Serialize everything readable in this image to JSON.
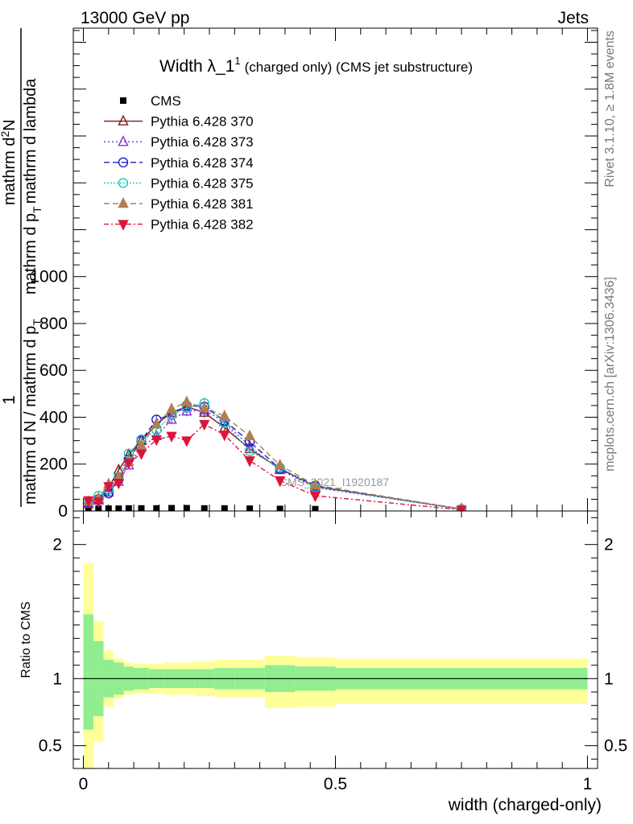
{
  "header": {
    "left": "13000 GeV pp",
    "right": "Jets"
  },
  "side_labels": {
    "rivet": "Rivet 3.1.10, ≥ 1.8M events",
    "mcplots": "mcplots.cern.ch [arXiv:1306.3436]"
  },
  "watermark": "CMS_2021_I1920187",
  "chart_data": [
    {
      "type": "line",
      "title_main": "Width λ_1",
      "title_sup": "1",
      "title_rest": "(charged only) (CMS jet substructure)",
      "ylabel": {
        "numerator": "1",
        "denominator": "mathrm d N / mathrm d p",
        "denominator_sub": "T",
        "factor": "mathrm d",
        "factor_sup": "2",
        "factor_tail": "N",
        "factor_den": "mathrm d p",
        "factor_den_sub": "T",
        "factor_den_tail": "mathrm d lambda"
      },
      "xlim": [
        -0.02,
        1.02
      ],
      "ylim": [
        0,
        2060
      ],
      "yticks": [
        0,
        200,
        400,
        600,
        800,
        1000
      ],
      "ytick_labels": [
        "0",
        "200",
        "400",
        "600",
        "800",
        "1000"
      ],
      "cms_bins": [
        0,
        0.02,
        0.04,
        0.06,
        0.08,
        0.1,
        0.13,
        0.16,
        0.19,
        0.22,
        0.26,
        0.3,
        0.36,
        0.42,
        0.5,
        1.0
      ],
      "series": [
        {
          "name": "CMS",
          "color": "#000000",
          "dash": "",
          "marker": "square",
          "x": [
            0.01,
            0.03,
            0.05,
            0.07,
            0.09,
            0.115,
            0.145,
            0.175,
            0.205,
            0.24,
            0.28,
            0.33,
            0.39,
            0.46,
            0.75
          ],
          "y": [
            2,
            3,
            3,
            3,
            4,
            4,
            4,
            5,
            5,
            4,
            4,
            3,
            2,
            1,
            0
          ]
        },
        {
          "name": "Pythia 6.428 370",
          "color": "#7b1a1a",
          "dash": "",
          "marker": "triangle-up-open",
          "x": [
            0.01,
            0.03,
            0.05,
            0.07,
            0.09,
            0.115,
            0.145,
            0.175,
            0.205,
            0.24,
            0.28,
            0.33,
            0.39,
            0.46,
            0.75
          ],
          "y": [
            30,
            50,
            100,
            175,
            240,
            300,
            370,
            420,
            445,
            420,
            355,
            265,
            180,
            105,
            8
          ]
        },
        {
          "name": "Pythia 6.428 373",
          "color": "#8a2be2",
          "dash": "2,3",
          "marker": "triangle-up-open",
          "x": [
            0.01,
            0.03,
            0.05,
            0.07,
            0.09,
            0.115,
            0.145,
            0.175,
            0.205,
            0.24,
            0.28,
            0.33,
            0.39,
            0.46,
            0.75
          ],
          "y": [
            32,
            45,
            80,
            125,
            195,
            270,
            320,
            390,
            425,
            430,
            380,
            275,
            175,
            100,
            8
          ]
        },
        {
          "name": "Pythia 6.428 374",
          "color": "#1a1acc",
          "dash": "7,4",
          "marker": "circle-open",
          "x": [
            0.01,
            0.03,
            0.05,
            0.07,
            0.09,
            0.115,
            0.145,
            0.175,
            0.205,
            0.24,
            0.28,
            0.33,
            0.39,
            0.46,
            0.75
          ],
          "y": [
            40,
            50,
            75,
            135,
            220,
            300,
            390,
            410,
            450,
            445,
            385,
            295,
            180,
            108,
            8
          ]
        },
        {
          "name": "Pythia 6.428 375",
          "color": "#20c8b4",
          "dash": "2,2",
          "marker": "circle-open",
          "x": [
            0.01,
            0.03,
            0.05,
            0.07,
            0.09,
            0.115,
            0.145,
            0.175,
            0.205,
            0.24,
            0.28,
            0.33,
            0.39,
            0.46,
            0.75
          ],
          "y": [
            42,
            65,
            90,
            145,
            245,
            305,
            345,
            410,
            440,
            460,
            375,
            255,
            185,
            102,
            8
          ]
        },
        {
          "name": "Pythia 6.428 381",
          "color": "#b08050",
          "dash": "7,4",
          "marker": "triangle-up-filled",
          "x": [
            0.01,
            0.03,
            0.05,
            0.07,
            0.09,
            0.115,
            0.145,
            0.175,
            0.205,
            0.24,
            0.28,
            0.33,
            0.39,
            0.46,
            0.75
          ],
          "y": [
            40,
            55,
            115,
            145,
            210,
            280,
            370,
            435,
            465,
            440,
            405,
            320,
            195,
            110,
            9
          ]
        },
        {
          "name": "Pythia 6.428 382",
          "color": "#dc143c",
          "dash": "6,3,2,3",
          "marker": "triangle-down-filled",
          "x": [
            0.01,
            0.03,
            0.05,
            0.07,
            0.09,
            0.115,
            0.145,
            0.175,
            0.205,
            0.24,
            0.28,
            0.33,
            0.39,
            0.46,
            0.75
          ],
          "y": [
            45,
            40,
            105,
            120,
            205,
            245,
            305,
            320,
            300,
            370,
            325,
            215,
            130,
            65,
            5
          ]
        }
      ]
    },
    {
      "type": "area",
      "ylabel": "Ratio to CMS",
      "xlabel": "width (charged-only)",
      "xlim": [
        -0.02,
        1.02
      ],
      "ylim": [
        0.33,
        2.25
      ],
      "yticks": [
        0.5,
        1,
        2
      ],
      "ytick_labels": [
        "0.5",
        "1",
        "2"
      ],
      "xticks": [
        0,
        0.5,
        1
      ],
      "xtick_labels": [
        "0",
        "0.5",
        "1"
      ],
      "bins": [
        0,
        0.02,
        0.04,
        0.06,
        0.08,
        0.1,
        0.13,
        0.16,
        0.19,
        0.22,
        0.26,
        0.3,
        0.36,
        0.42,
        0.5,
        1.0
      ],
      "band_inner_up": [
        1.48,
        1.28,
        1.14,
        1.12,
        1.09,
        1.08,
        1.07,
        1.07,
        1.07,
        1.07,
        1.08,
        1.08,
        1.1,
        1.09,
        1.08
      ],
      "band_inner_down": [
        0.62,
        0.72,
        0.86,
        0.88,
        0.91,
        0.92,
        0.93,
        0.93,
        0.93,
        0.93,
        0.92,
        0.92,
        0.9,
        0.91,
        0.92
      ],
      "band_outer_up": [
        1.86,
        1.43,
        1.21,
        1.15,
        1.12,
        1.11,
        1.11,
        1.12,
        1.12,
        1.13,
        1.14,
        1.14,
        1.17,
        1.16,
        1.15
      ],
      "band_outer_down": [
        0.33,
        0.53,
        0.79,
        0.85,
        0.88,
        0.89,
        0.89,
        0.88,
        0.88,
        0.87,
        0.86,
        0.86,
        0.78,
        0.79,
        0.81
      ],
      "inner_color": "#90ee90",
      "outer_color": "#ffff99"
    }
  ]
}
